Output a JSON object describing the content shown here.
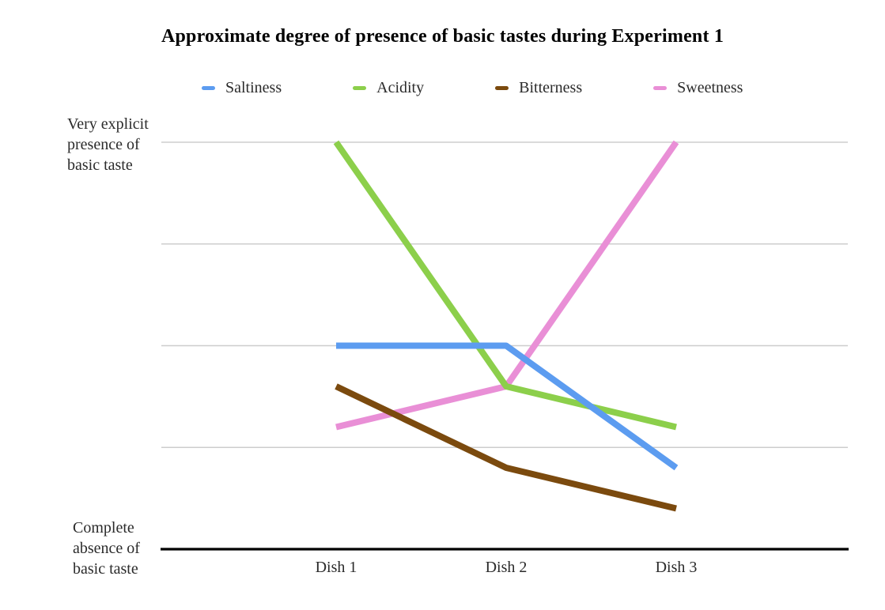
{
  "chart_data": {
    "type": "line",
    "title": "Approximate degree of presence of basic tastes during Experiment 1",
    "categories": [
      "Dish 1",
      "Dish 2",
      "Dish 3"
    ],
    "series": [
      {
        "name": "Saltiness",
        "color": "#5C9CF0",
        "values": [
          2.0,
          2.0,
          0.8
        ]
      },
      {
        "name": "Acidity",
        "color": "#8CCF4B",
        "values": [
          4.0,
          1.6,
          1.2
        ]
      },
      {
        "name": "Bitterness",
        "color": "#7B4A0E",
        "values": [
          1.6,
          0.8,
          0.4
        ]
      },
      {
        "name": "Sweetness",
        "color": "#E98FD6",
        "values": [
          1.2,
          1.6,
          4.0
        ]
      }
    ],
    "ylim": [
      0,
      4
    ],
    "y_axis_max_label_lines": [
      "Very explicit",
      "presence of",
      "basic taste"
    ],
    "y_axis_min_label_lines": [
      "Complete",
      "absence of",
      "basic taste"
    ],
    "grid": true,
    "gridline_color": "#CDCDCD",
    "axis_color": "#000000",
    "legend_position": "top"
  }
}
